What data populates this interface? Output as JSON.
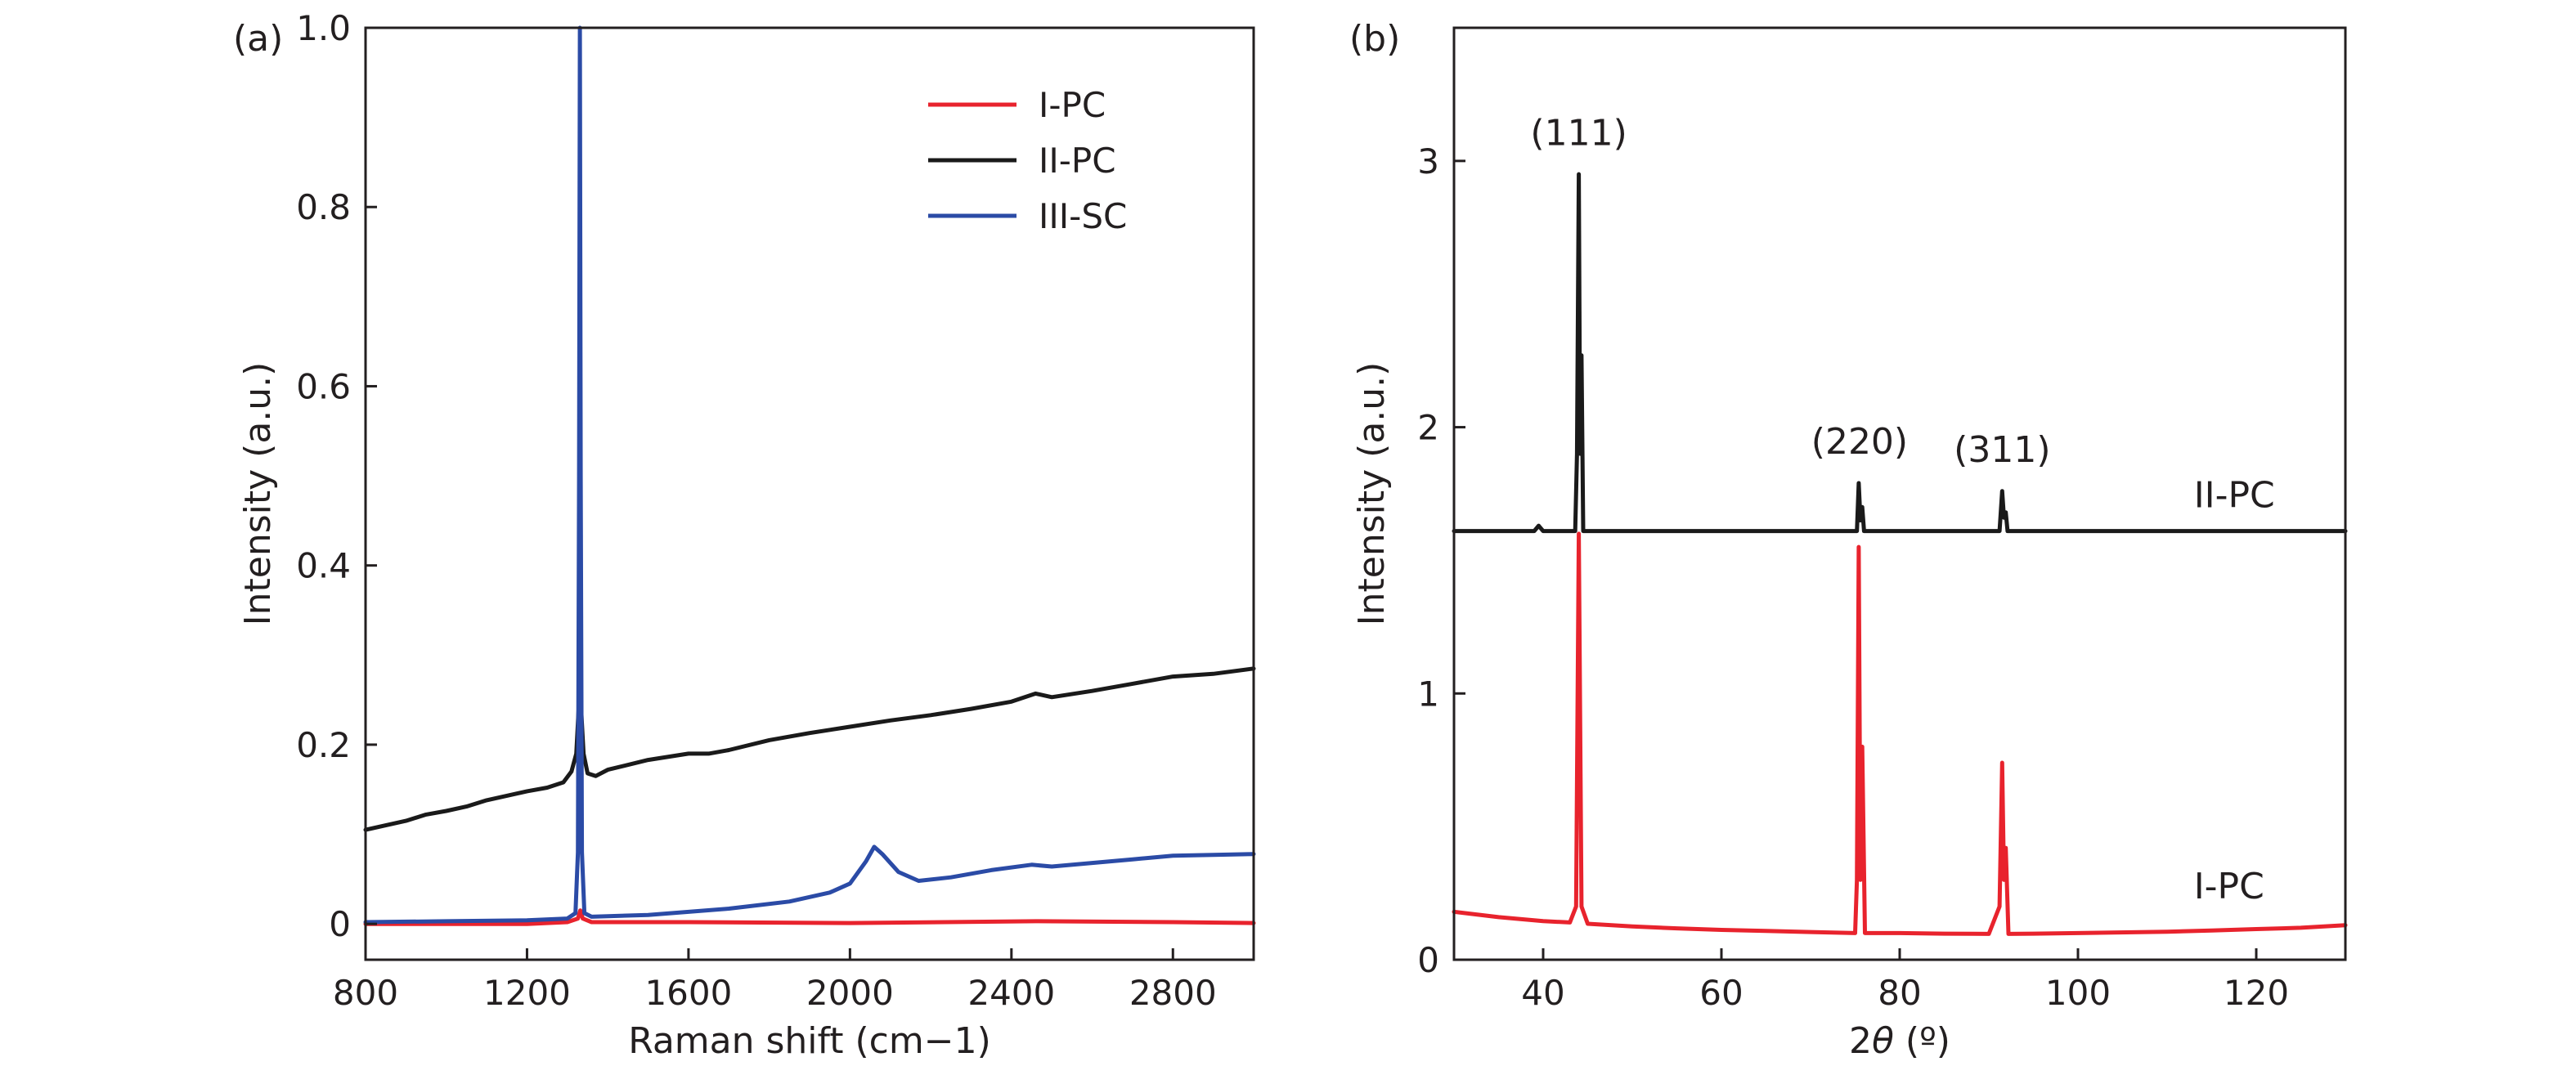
{
  "chart_data": [
    {
      "panel_label": "(a)",
      "type": "line",
      "xlabel": "Raman shift (cm−1)",
      "ylabel": "Intensity (a.u.)",
      "xlim": [
        800,
        3000
      ],
      "ylim": [
        -0.04,
        1.0
      ],
      "x_ticks": [
        800,
        1200,
        1600,
        2000,
        2400,
        2800
      ],
      "y_ticks": [
        0,
        0.2,
        0.4,
        0.6,
        0.8,
        1.0
      ],
      "y_tick_labels": [
        "0",
        "0.2",
        "0.4",
        "0.6",
        "0.8",
        "1.0"
      ],
      "legend": {
        "position": "top-right"
      },
      "series": [
        {
          "name": "I-PC",
          "color": "#e8232d",
          "points": [
            [
              800,
              0.0
            ],
            [
              1200,
              0.0
            ],
            [
              1300,
              0.002
            ],
            [
              1326,
              0.006
            ],
            [
              1332,
              0.015
            ],
            [
              1338,
              0.006
            ],
            [
              1360,
              0.002
            ],
            [
              1600,
              0.002
            ],
            [
              2000,
              0.001
            ],
            [
              2460,
              0.003
            ],
            [
              2800,
              0.002
            ],
            [
              3000,
              0.001
            ]
          ]
        },
        {
          "name": "II-PC",
          "color": "#1a1a1a",
          "points": [
            [
              800,
              0.105
            ],
            [
              850,
              0.11
            ],
            [
              900,
              0.115
            ],
            [
              950,
              0.122
            ],
            [
              1000,
              0.126
            ],
            [
              1050,
              0.131
            ],
            [
              1100,
              0.138
            ],
            [
              1150,
              0.143
            ],
            [
              1200,
              0.148
            ],
            [
              1250,
              0.152
            ],
            [
              1290,
              0.158
            ],
            [
              1310,
              0.17
            ],
            [
              1322,
              0.19
            ],
            [
              1328,
              0.24
            ],
            [
              1331,
              0.3
            ],
            [
              1334,
              0.24
            ],
            [
              1340,
              0.19
            ],
            [
              1350,
              0.168
            ],
            [
              1370,
              0.165
            ],
            [
              1400,
              0.172
            ],
            [
              1500,
              0.183
            ],
            [
              1600,
              0.19
            ],
            [
              1650,
              0.19
            ],
            [
              1700,
              0.194
            ],
            [
              1800,
              0.205
            ],
            [
              1900,
              0.213
            ],
            [
              2000,
              0.22
            ],
            [
              2100,
              0.227
            ],
            [
              2200,
              0.233
            ],
            [
              2300,
              0.24
            ],
            [
              2400,
              0.248
            ],
            [
              2460,
              0.257
            ],
            [
              2500,
              0.253
            ],
            [
              2600,
              0.26
            ],
            [
              2700,
              0.268
            ],
            [
              2800,
              0.276
            ],
            [
              2900,
              0.279
            ],
            [
              3000,
              0.285
            ]
          ]
        },
        {
          "name": "III-SC",
          "color": "#2b4ba6",
          "points": [
            [
              800,
              0.002
            ],
            [
              1000,
              0.003
            ],
            [
              1200,
              0.004
            ],
            [
              1300,
              0.006
            ],
            [
              1320,
              0.012
            ],
            [
              1326,
              0.08
            ],
            [
              1329,
              0.5
            ],
            [
              1331,
              1.0
            ],
            [
              1333,
              0.5
            ],
            [
              1336,
              0.08
            ],
            [
              1342,
              0.012
            ],
            [
              1360,
              0.008
            ],
            [
              1500,
              0.01
            ],
            [
              1700,
              0.017
            ],
            [
              1850,
              0.025
            ],
            [
              1950,
              0.035
            ],
            [
              2000,
              0.045
            ],
            [
              2040,
              0.07
            ],
            [
              2060,
              0.086
            ],
            [
              2080,
              0.078
            ],
            [
              2120,
              0.058
            ],
            [
              2170,
              0.048
            ],
            [
              2250,
              0.052
            ],
            [
              2350,
              0.06
            ],
            [
              2450,
              0.066
            ],
            [
              2500,
              0.064
            ],
            [
              2600,
              0.068
            ],
            [
              2700,
              0.072
            ],
            [
              2800,
              0.076
            ],
            [
              2900,
              0.077
            ],
            [
              3000,
              0.078
            ]
          ]
        }
      ]
    },
    {
      "panel_label": "(b)",
      "type": "line",
      "xlabel_prefix": "2",
      "xlabel_symbol": "θ",
      "xlabel_suffix": " (º)",
      "ylabel": "Intensity (a.u.)",
      "xlim": [
        30,
        130
      ],
      "ylim": [
        0,
        3.5
      ],
      "x_ticks": [
        40,
        60,
        80,
        100,
        120
      ],
      "y_ticks": [
        0,
        1,
        2,
        3
      ],
      "series": [
        {
          "name": "I-PC",
          "color": "#e8232d",
          "points": [
            [
              30,
              0.18
            ],
            [
              35,
              0.16
            ],
            [
              40,
              0.145
            ],
            [
              43,
              0.14
            ],
            [
              43.7,
              0.2
            ],
            [
              44.0,
              1.6
            ],
            [
              44.3,
              0.2
            ],
            [
              45,
              0.135
            ],
            [
              50,
              0.125
            ],
            [
              55,
              0.118
            ],
            [
              60,
              0.112
            ],
            [
              65,
              0.108
            ],
            [
              70,
              0.104
            ],
            [
              75,
              0.1
            ],
            [
              75.2,
              0.3
            ],
            [
              75.4,
              1.55
            ],
            [
              75.6,
              0.3
            ],
            [
              75.8,
              0.8
            ],
            [
              76.1,
              0.1
            ],
            [
              80,
              0.1
            ],
            [
              85,
              0.098
            ],
            [
              90,
              0.097
            ],
            [
              91.2,
              0.2
            ],
            [
              91.5,
              0.74
            ],
            [
              91.7,
              0.3
            ],
            [
              91.9,
              0.42
            ],
            [
              92.2,
              0.097
            ],
            [
              95,
              0.098
            ],
            [
              100,
              0.1
            ],
            [
              110,
              0.105
            ],
            [
              115,
              0.11
            ],
            [
              120,
              0.115
            ],
            [
              125,
              0.12
            ],
            [
              130,
              0.13
            ]
          ]
        },
        {
          "name": "II-PC",
          "color": "#1a1a1a",
          "points": [
            [
              30,
              1.61
            ],
            [
              39,
              1.61
            ],
            [
              39.5,
              1.63
            ],
            [
              40,
              1.61
            ],
            [
              43.6,
              1.61
            ],
            [
              43.8,
              1.9
            ],
            [
              44.0,
              2.95
            ],
            [
              44.15,
              1.9
            ],
            [
              44.3,
              2.27
            ],
            [
              44.5,
              1.61
            ],
            [
              75.2,
              1.61
            ],
            [
              75.4,
              1.79
            ],
            [
              75.6,
              1.65
            ],
            [
              75.8,
              1.7
            ],
            [
              76.0,
              1.61
            ],
            [
              91.2,
              1.61
            ],
            [
              91.5,
              1.76
            ],
            [
              91.7,
              1.66
            ],
            [
              91.9,
              1.68
            ],
            [
              92.1,
              1.61
            ],
            [
              130,
              1.61
            ]
          ]
        }
      ],
      "annotations": [
        {
          "text": "(111)",
          "x": 44,
          "y": 3.06
        },
        {
          "text": "(220)",
          "x": 75.5,
          "y": 1.9
        },
        {
          "text": "(311)",
          "x": 91.5,
          "y": 1.87
        }
      ],
      "curve_labels": [
        {
          "text": "II-PC",
          "x": 113,
          "y": 1.7
        },
        {
          "text": "I-PC",
          "x": 113,
          "y": 0.23
        }
      ]
    }
  ]
}
